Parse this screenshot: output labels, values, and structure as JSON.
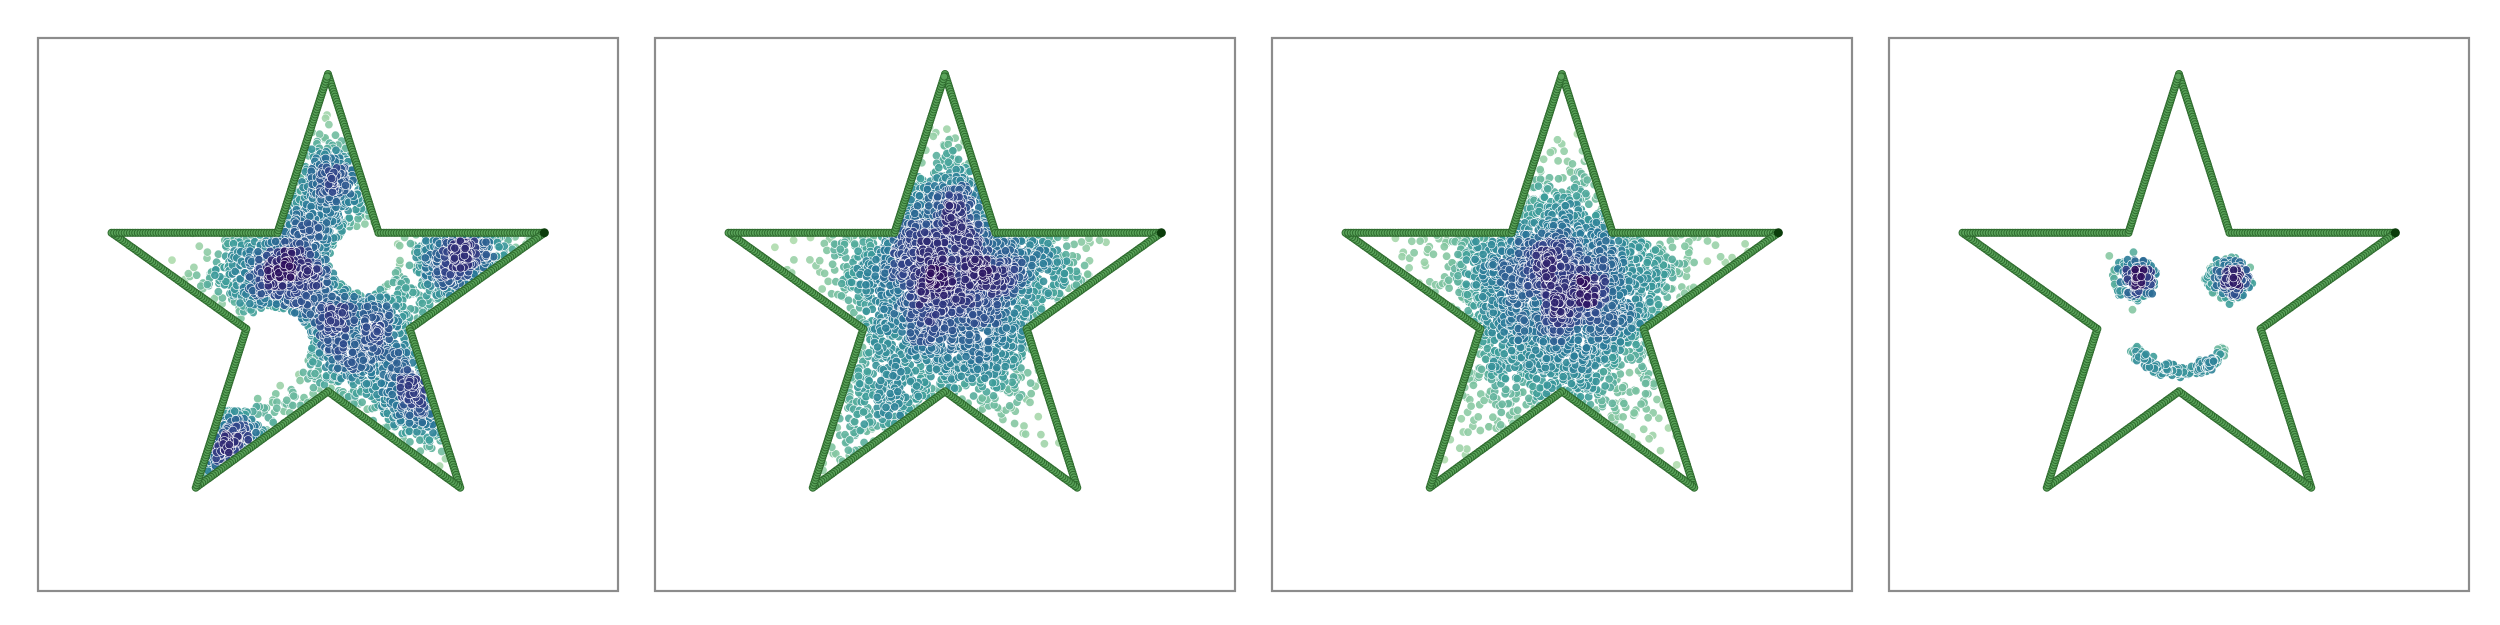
{
  "figure": {
    "colors": {
      "outline_fill": "#5aa35a",
      "outline_stroke": "#2e6b2e",
      "outline_end": "#0b3d0b",
      "frame": "#8c8c8c",
      "colormap": [
        "#2f0f5e",
        "#31478b",
        "#2a7a99",
        "#3e9e9a",
        "#7cc3a0",
        "#b9e0b0"
      ]
    }
  },
  "chart_data": [
    {
      "type": "scatter",
      "panel": 1,
      "xlim": [
        -1.1,
        1.1
      ],
      "ylim": [
        -1.2,
        1.1
      ],
      "grid": false,
      "axes_ticks": false,
      "series": [
        {
          "role": "star-outline",
          "vertices": [
            [
              0.0,
              0.95
            ],
            [
              0.21,
              0.29
            ],
            [
              0.9,
              0.29
            ],
            [
              0.34,
              -0.11
            ],
            [
              0.55,
              -0.77
            ],
            [
              0.0,
              -0.37
            ],
            [
              -0.55,
              -0.77
            ],
            [
              -0.34,
              -0.11
            ],
            [
              -0.9,
              0.29
            ],
            [
              -0.21,
              0.29
            ]
          ]
        },
        {
          "role": "density-cloud",
          "clusters": [
            {
              "center": [
                -0.18,
                0.14
              ],
              "spread": 0.15,
              "count": 900
            },
            {
              "center": [
                0.12,
                -0.13
              ],
              "spread": 0.17,
              "count": 900
            },
            {
              "center": [
                0.55,
                0.2
              ],
              "spread": 0.12,
              "count": 450
            },
            {
              "center": [
                0.02,
                0.5
              ],
              "spread": 0.1,
              "count": 350
            },
            {
              "center": [
                -0.4,
                -0.62
              ],
              "spread": 0.12,
              "count": 300
            },
            {
              "center": [
                0.4,
                -0.4
              ],
              "spread": 0.1,
              "count": 300
            }
          ],
          "holes": [
            [
              0.15,
              0.18,
              0.14
            ],
            [
              -0.23,
              -0.18,
              0.16
            ],
            [
              -0.38,
              -0.35,
              0.1
            ]
          ]
        }
      ]
    },
    {
      "type": "scatter",
      "panel": 2,
      "xlim": [
        -1.1,
        1.1
      ],
      "ylim": [
        -1.2,
        1.1
      ],
      "grid": false,
      "axes_ticks": false,
      "series": [
        {
          "role": "star-outline",
          "vertices": [
            [
              0.0,
              0.95
            ],
            [
              0.21,
              0.29
            ],
            [
              0.9,
              0.29
            ],
            [
              0.34,
              -0.11
            ],
            [
              0.55,
              -0.77
            ],
            [
              0.0,
              -0.37
            ],
            [
              -0.55,
              -0.77
            ],
            [
              -0.34,
              -0.11
            ],
            [
              -0.9,
              0.29
            ],
            [
              -0.21,
              0.29
            ]
          ]
        },
        {
          "role": "density-cloud",
          "clusters": [
            {
              "center": [
                -0.1,
                0.17
              ],
              "spread": 0.19,
              "count": 1100
            },
            {
              "center": [
                0.08,
                -0.1
              ],
              "spread": 0.2,
              "count": 1000
            },
            {
              "center": [
                0.3,
                0.18
              ],
              "spread": 0.17,
              "count": 500
            },
            {
              "center": [
                0.05,
                0.42
              ],
              "spread": 0.13,
              "count": 300
            },
            {
              "center": [
                -0.25,
                -0.45
              ],
              "spread": 0.18,
              "count": 300
            }
          ],
          "holes": []
        }
      ]
    },
    {
      "type": "scatter",
      "panel": 3,
      "xlim": [
        -1.1,
        1.1
      ],
      "ylim": [
        -1.2,
        1.1
      ],
      "grid": false,
      "axes_ticks": false,
      "series": [
        {
          "role": "star-outline",
          "vertices": [
            [
              0.0,
              0.95
            ],
            [
              0.21,
              0.29
            ],
            [
              0.9,
              0.29
            ],
            [
              0.34,
              -0.11
            ],
            [
              0.55,
              -0.77
            ],
            [
              0.0,
              -0.37
            ],
            [
              -0.55,
              -0.77
            ],
            [
              -0.34,
              -0.11
            ],
            [
              -0.9,
              0.29
            ],
            [
              -0.21,
              0.29
            ]
          ]
        },
        {
          "role": "density-cloud",
          "clusters": [
            {
              "center": [
                -0.08,
                0.12
              ],
              "spread": 0.22,
              "count": 1300
            },
            {
              "center": [
                0.15,
                0.07
              ],
              "spread": 0.22,
              "count": 1000
            },
            {
              "center": [
                -0.05,
                -0.25
              ],
              "spread": 0.25,
              "count": 600
            }
          ],
          "holes": []
        }
      ]
    },
    {
      "type": "scatter",
      "panel": 4,
      "xlim": [
        -1.1,
        1.1
      ],
      "ylim": [
        -1.2,
        1.1
      ],
      "grid": false,
      "axes_ticks": false,
      "series": [
        {
          "role": "star-outline",
          "vertices": [
            [
              0.0,
              0.95
            ],
            [
              0.21,
              0.29
            ],
            [
              0.9,
              0.29
            ],
            [
              0.34,
              -0.11
            ],
            [
              0.55,
              -0.77
            ],
            [
              0.0,
              -0.37
            ],
            [
              -0.55,
              -0.77
            ],
            [
              -0.34,
              -0.11
            ],
            [
              -0.9,
              0.29
            ],
            [
              -0.21,
              0.29
            ]
          ]
        },
        {
          "role": "smiley-face",
          "eyes": [
            {
              "ring_center": [
                -0.19,
                0.1
              ],
              "ring_radius": 0.078,
              "pupil_center": [
                -0.17,
                0.1
              ],
              "pupil_spread": 0.035
            },
            {
              "ring_center": [
                0.2,
                0.1
              ],
              "ring_radius": 0.078,
              "pupil_center": [
                0.22,
                0.1
              ],
              "pupil_spread": 0.035
            }
          ],
          "mouth": {
            "center": [
              0.0,
              -0.05
            ],
            "radius": 0.24,
            "start_deg": 215,
            "end_deg": 325
          }
        }
      ]
    }
  ]
}
